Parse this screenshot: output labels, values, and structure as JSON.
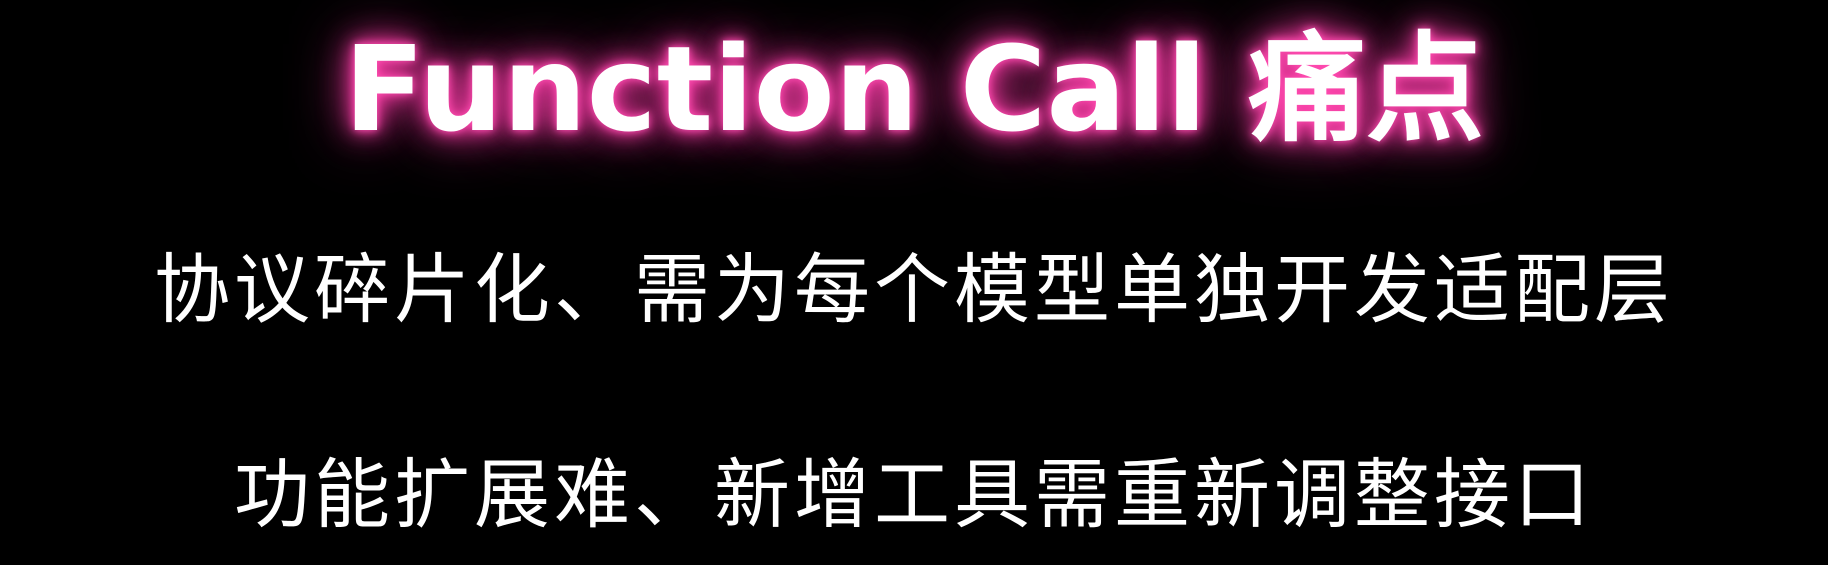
{
  "slide": {
    "title": "Function Call 痛点",
    "points": [
      "协议碎片化、需为每个模型单独开发适配层",
      "功能扩展难、新增工具需重新调整接口"
    ]
  },
  "colors": {
    "background": "#000000",
    "text": "#ffffff",
    "title_glow": "#ff3fa8"
  }
}
